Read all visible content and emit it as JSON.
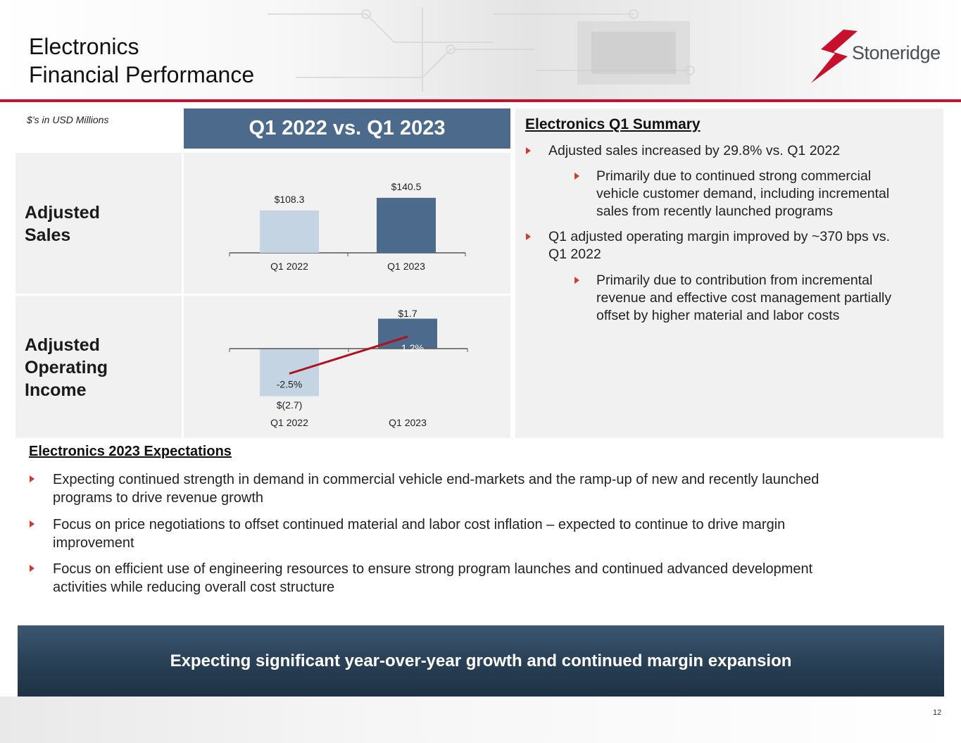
{
  "header": {
    "title_line1": "Electronics",
    "title_line2": "Financial Performance",
    "logo_text": "Stoneridge"
  },
  "units_note": "$’s in USD Millions",
  "comparison_banner": "Q1 2022 vs. Q1 2023",
  "rows": {
    "sales_label_1": "Adjusted",
    "sales_label_2": "Sales",
    "income_label_1": "Adjusted",
    "income_label_2": "Operating",
    "income_label_3": "Income"
  },
  "chart_data": [
    {
      "type": "bar",
      "categories": [
        "Q1 2022",
        "Q1 2023"
      ],
      "values": [
        108.3,
        140.5
      ],
      "value_labels": [
        "$108.3",
        "$140.5"
      ],
      "colors": [
        "#c5d4e2",
        "#4b6a8c"
      ]
    },
    {
      "type": "bar",
      "categories": [
        "Q1 2022",
        "Q1 2023"
      ],
      "values": [
        -2.7,
        1.7
      ],
      "value_labels": [
        "$(2.7)",
        "$1.7"
      ],
      "colors": [
        "#c5d4e2",
        "#4b6a8c"
      ],
      "margin_line": {
        "values": [
          -2.5,
          1.2
        ],
        "labels": [
          "-2.5%",
          "1.2%"
        ],
        "color": "#b01020"
      }
    }
  ],
  "summary": {
    "title": "Electronics Q1 Summary",
    "b1": "Adjusted sales increased by 29.8% vs. Q1 2022",
    "b1a_l1": "Primarily due to continued strong commercial",
    "b1a_l2": "vehicle customer demand, including incremental",
    "b1a_l3": "sales from recently launched programs",
    "b2_l1": "Q1 adjusted operating margin improved by ~370 bps vs.",
    "b2_l2": "Q1 2022",
    "b2a_l1": "Primarily due to contribution from incremental",
    "b2a_l2": "revenue and effective cost management partially",
    "b2a_l3": "offset by higher material and labor costs"
  },
  "expectations": {
    "title": "Electronics 2023 Expectations",
    "e1_l1": "Expecting continued strength in demand in commercial vehicle end-markets and the ramp-up of new and recently launched",
    "e1_l2": "programs to drive revenue growth",
    "e2_l1": "Focus on price negotiations to offset continued material and labor cost inflation – expected to continue to drive margin",
    "e2_l2": "improvement",
    "e3_l1": "Focus on efficient use of engineering resources to ensure strong program launches and continued advanced development",
    "e3_l2": "activities while reducing overall cost structure"
  },
  "bottom_banner": "Expecting significant year-over-year growth and continued margin expansion",
  "page_number": "12"
}
